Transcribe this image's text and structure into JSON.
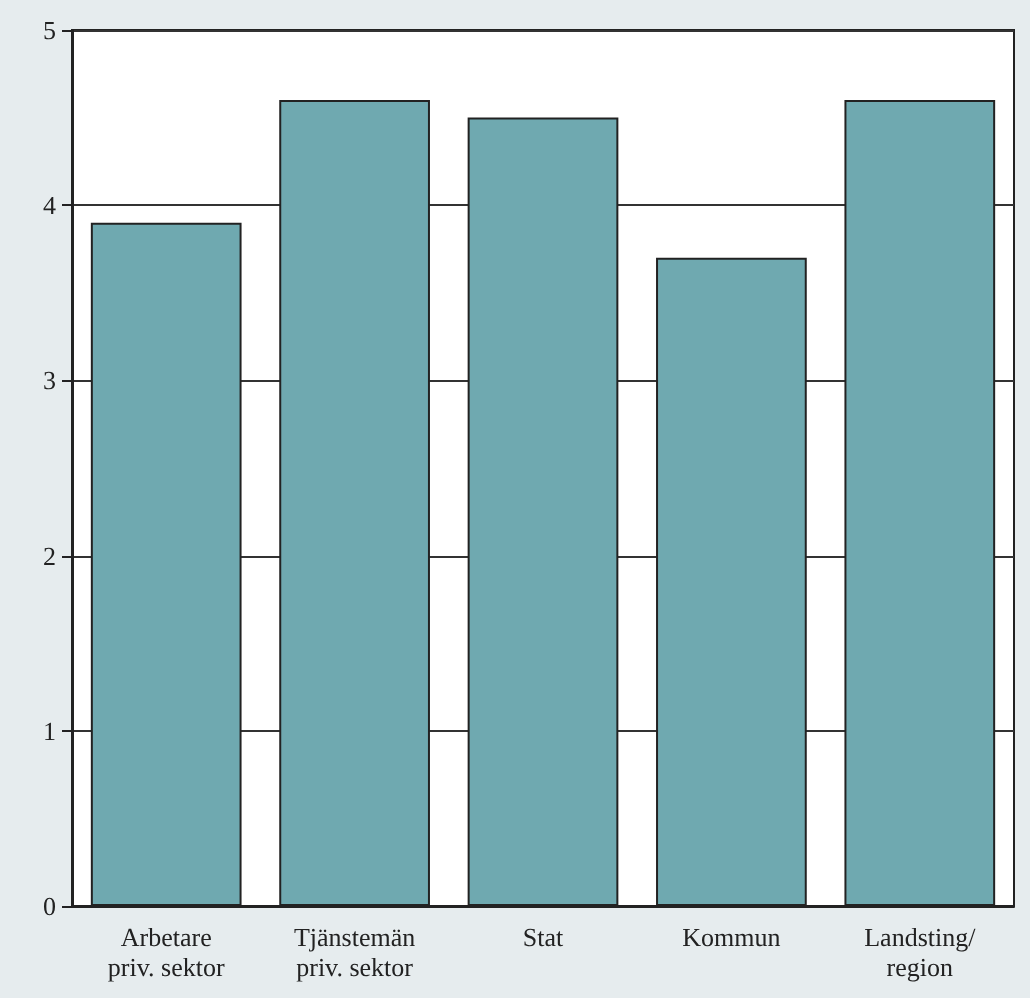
{
  "chart_data": {
    "type": "bar",
    "categories": [
      "Arbetare\npriv. sektor",
      "Tjänstemän\npriv. sektor",
      "Stat",
      "Kommun",
      "Landsting/\nregion"
    ],
    "values": [
      3.9,
      4.6,
      4.5,
      3.7,
      4.6
    ],
    "color": "#6fa9b0",
    "ylim": [
      0,
      5
    ],
    "yticks": [
      0,
      1,
      2,
      3,
      4,
      5
    ],
    "grid": "y"
  }
}
